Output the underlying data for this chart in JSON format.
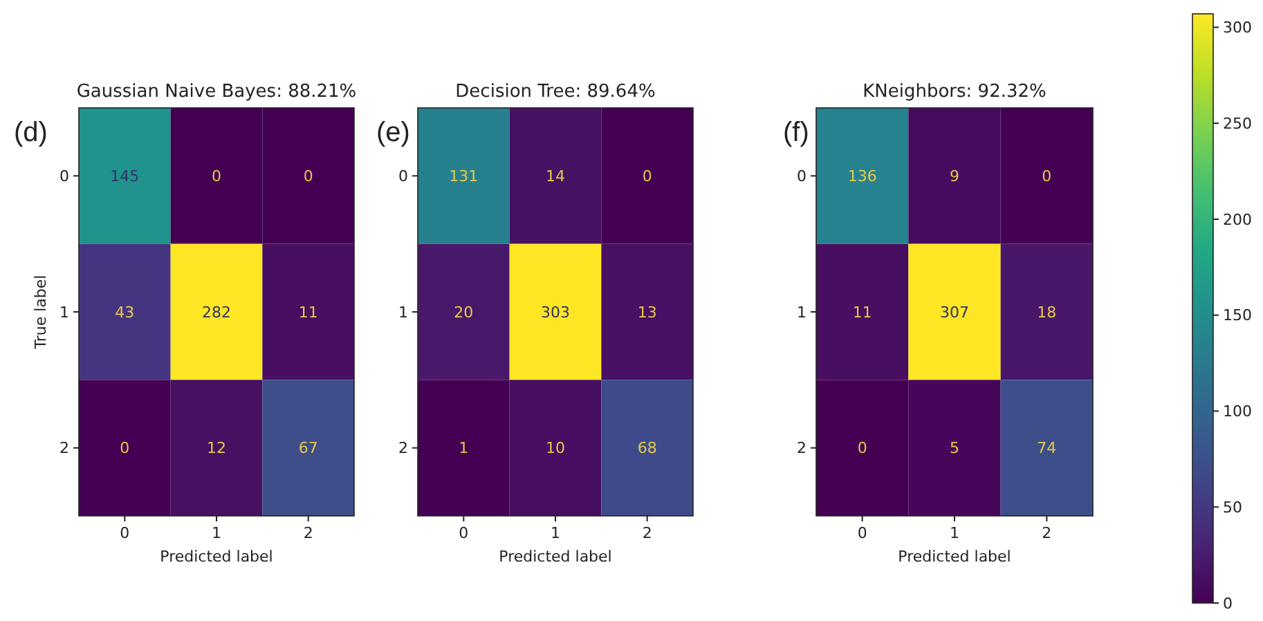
{
  "chart_data": [
    {
      "type": "heatmap",
      "title": "Gaussian Naive Bayes: 88.21%",
      "xlabel": "Predicted label",
      "ylabel": "True label",
      "annotations": [
        "(d)"
      ],
      "categories": [
        "0",
        "1",
        "2"
      ],
      "y_categories": [
        "0",
        "1",
        "2"
      ],
      "cells": [
        [
          145,
          0,
          0
        ],
        [
          43,
          282,
          11
        ],
        [
          0,
          12,
          67
        ]
      ],
      "data_labels": true
    },
    {
      "type": "heatmap",
      "title": "Decision Tree: 89.64%",
      "xlabel": "Predicted label",
      "annotations": [
        "(e)"
      ],
      "categories": [
        "0",
        "1",
        "2"
      ],
      "y_categories": [
        "0",
        "1",
        "2"
      ],
      "cells": [
        [
          131,
          14,
          0
        ],
        [
          20,
          303,
          13
        ],
        [
          1,
          10,
          68
        ]
      ],
      "data_labels": true
    },
    {
      "type": "heatmap",
      "title": "KNeighbors: 92.32%",
      "xlabel": "Predicted label",
      "annotations": [
        "(f)"
      ],
      "categories": [
        "0",
        "1",
        "2"
      ],
      "y_categories": [
        "0",
        "1",
        "2"
      ],
      "cells": [
        [
          136,
          9,
          0
        ],
        [
          11,
          307,
          18
        ],
        [
          0,
          5,
          74
        ]
      ],
      "data_labels": true,
      "clim": [
        0,
        307
      ],
      "cticks": [
        0,
        50,
        100,
        150,
        200,
        250,
        300
      ]
    }
  ]
}
